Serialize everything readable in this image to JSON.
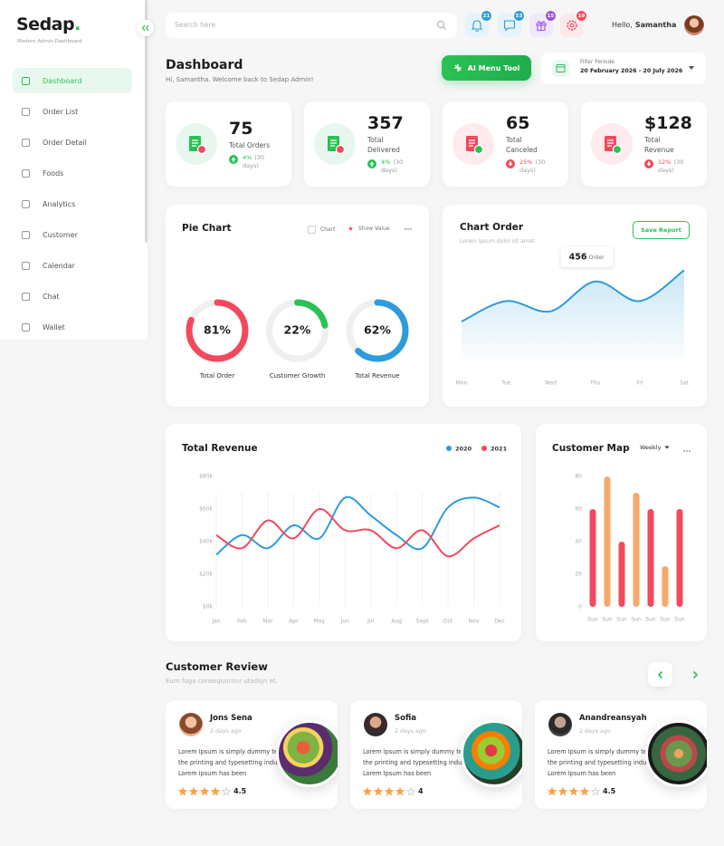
{
  "sidebar": {
    "logo": "Sedap",
    "logo_dot": ".",
    "tagline": "Modern Admin Dashboard",
    "menu": [
      "Dashboard",
      "Order List",
      "Order Detail",
      "Foods",
      "Analytics",
      "Customer",
      "Calendar",
      "Chat",
      "Wallet"
    ],
    "active": 0
  },
  "header": {
    "search_placeholder": "Search here",
    "badges": [
      21,
      53,
      15,
      19
    ],
    "greeting": "Hello,",
    "user": "Samantha"
  },
  "page": {
    "title": "Dashboard",
    "subtitle": "Hi, Samantha. Welcome back to Sedap Admin!",
    "button": "AI Menu Tool",
    "filter_label": "Filter Periode",
    "filter_value": "20 February 2026 - 20 July 2026"
  },
  "stats": [
    {
      "value": 75,
      "label": "Total Orders",
      "change": "4%",
      "period": "(30 days)",
      "trend": "up"
    },
    {
      "value": 357,
      "label": "Total Delivered",
      "change": "4%",
      "period": "(30 days)",
      "trend": "up"
    },
    {
      "value": 65,
      "label": "Total Canceled",
      "change": "25%",
      "period": "(30 days)",
      "trend": "down"
    },
    {
      "value": "$128",
      "label": "Total Revenue",
      "change": "12%",
      "period": "(30 days)",
      "trend": "down"
    }
  ],
  "pie_chart": {
    "type": "donut",
    "title": "Pie Chart",
    "options": [
      "Chart",
      "Show Value"
    ],
    "categories": [
      "Total Order",
      "Customer Growth",
      "Total Revenue"
    ],
    "values": [
      81,
      22,
      62
    ],
    "value_labels": [
      "81%",
      "22%",
      "62%"
    ],
    "colors": [
      "#f2495c",
      "#2bc155",
      "#2d9cdb"
    ]
  },
  "chart_order": {
    "type": "area",
    "title": "Chart Order",
    "subtitle": "Lorem ipsum dolor sit amet",
    "button": "Save Report",
    "tooltip_index": 3,
    "tooltip_unit": "Order",
    "categories": [
      "Mon",
      "Tue",
      "Wed",
      "Thu",
      "Fri",
      "Sat"
    ],
    "values": [
      300,
      380,
      340,
      456,
      380,
      500
    ],
    "ylim": [
      0,
      600
    ],
    "color": "#2d9cdb"
  },
  "total_revenue": {
    "type": "line",
    "title": "Total Revenue",
    "categories": [
      "Jan",
      "Feb",
      "Mar",
      "Apr",
      "May",
      "Jun",
      "Jul",
      "Aug",
      "Sept",
      "Oct",
      "Nov",
      "Dec"
    ],
    "series": [
      {
        "name": "2020",
        "color": "#2d9cdb",
        "values": [
          32,
          44,
          36,
          50,
          42,
          67,
          56,
          44,
          36,
          61,
          67,
          61
        ]
      },
      {
        "name": "2021",
        "color": "#f2495c",
        "values": [
          44,
          36,
          53,
          42,
          60,
          47,
          47,
          36,
          47,
          31,
          42,
          50
        ]
      }
    ],
    "ylim": [
      0,
      80
    ],
    "yticks": [
      {
        "value": 0,
        "label": "$0k"
      },
      {
        "value": 20,
        "label": "$20k"
      },
      {
        "value": 40,
        "label": "$40k"
      },
      {
        "value": 60,
        "label": "$60k"
      },
      {
        "value": 80,
        "label": "$80k"
      }
    ]
  },
  "customer_map": {
    "type": "bar",
    "title": "Customer Map",
    "period": "Weekly",
    "categories": [
      "Sun",
      "Sun",
      "Sun",
      "Sun",
      "Sun",
      "Sun",
      "Sun"
    ],
    "values": [
      60,
      80,
      40,
      70,
      60,
      25,
      60
    ],
    "colors": [
      "#f2495c",
      "#f6a96a",
      "#f2495c",
      "#f6a96a",
      "#f2495c",
      "#f6a96a",
      "#f2495c"
    ],
    "ylim": [
      0,
      80
    ],
    "yticks": [
      0,
      20,
      40,
      60,
      80
    ]
  },
  "customer_review": {
    "title": "Customer Review",
    "subtitle": "Eum fuga consequuntur utadsjn et.",
    "reviews": [
      {
        "name": "Jons Sena",
        "time": "2 days ago",
        "text": "Lorem Ipsum is simply dummy text of the printing and typesetting industry. Lorem Ipsum has been",
        "rating": 4.5
      },
      {
        "name": "Sofia",
        "time": "2 days ago",
        "text": "Lorem Ipsum is simply dummy text of the printing and typesetting industry. Lorem Ipsum has been",
        "rating": 4
      },
      {
        "name": "Anandreansyah",
        "time": "2 days ago",
        "text": "Lorem Ipsum is simply dummy text of the printing and typesetting industry. Lorem Ipsum has been",
        "rating": 4.5
      }
    ]
  }
}
